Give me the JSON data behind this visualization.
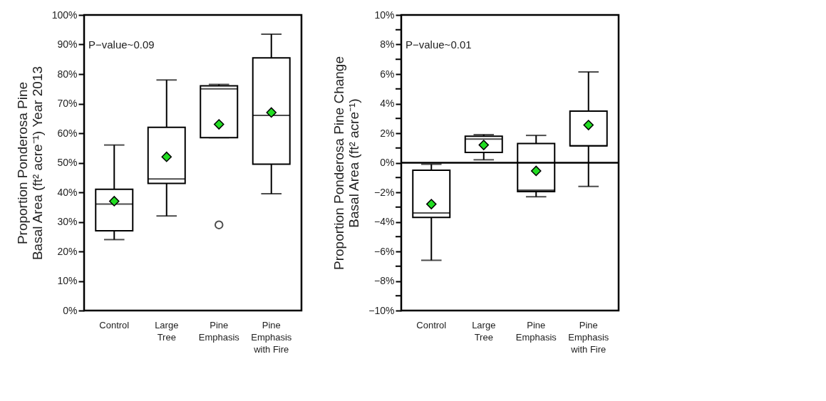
{
  "chart_data": [
    {
      "type": "box",
      "ylabel": "Proportion Ponderosa Pine\nBasal Area (ft² acre⁻¹) Year 2013",
      "categories": [
        "Control",
        "Large\nTree",
        "Pine\nEmphasis",
        "Pine\nEmphasis\nwith Fire"
      ],
      "boxes": [
        {
          "low": 24,
          "q1": 27,
          "median": 36,
          "q3": 41,
          "high": 56,
          "mean": 37
        },
        {
          "low": 32,
          "q1": 43,
          "median": 44.5,
          "q3": 62,
          "high": 78,
          "mean": 52
        },
        {
          "low": 58.5,
          "q1": 58.5,
          "median": 75,
          "q3": 76,
          "high": 76.5,
          "mean": 63,
          "outliers": [
            29
          ]
        },
        {
          "low": 39.5,
          "q1": 49.5,
          "median": 66,
          "q3": 85.5,
          "high": 93.5,
          "mean": 67
        }
      ],
      "ylim": [
        0,
        100
      ],
      "yticks": [
        {
          "value": 0,
          "label": "0%"
        },
        {
          "value": 10,
          "label": "10%"
        },
        {
          "value": 20,
          "label": "20%"
        },
        {
          "value": 30,
          "label": "30%"
        },
        {
          "value": 40,
          "label": "40%"
        },
        {
          "value": 50,
          "label": "50%"
        },
        {
          "value": 60,
          "label": "60%"
        },
        {
          "value": 70,
          "label": "70%"
        },
        {
          "value": 80,
          "label": "80%"
        },
        {
          "value": 90,
          "label": "90%"
        },
        {
          "value": 100,
          "label": "100%"
        }
      ],
      "annotations": [
        "P−value~0.09"
      ],
      "grid": false,
      "legend": false
    },
    {
      "type": "box",
      "ylabel": "Proportion Ponderosa Pine Change\nBasal Area (ft² acre⁻¹)",
      "categories": [
        "Control",
        "Large\nTree",
        "Pine\nEmphasis",
        "Pine\nEmphasis\nwith Fire"
      ],
      "boxes": [
        {
          "low": -6.6,
          "q1": -3.7,
          "median": -3.4,
          "q3": -0.5,
          "high": -0.1,
          "mean": -2.8
        },
        {
          "low": 0.2,
          "q1": 0.7,
          "median": 1.6,
          "q3": 1.8,
          "high": 1.9,
          "mean": 1.2
        },
        {
          "low": -2.3,
          "q1": -1.95,
          "median": -1.85,
          "q3": 1.3,
          "high": 1.85,
          "mean": -0.55
        },
        {
          "low": -1.6,
          "q1": 1.15,
          "median": 1.15,
          "q3": 3.5,
          "high": 6.15,
          "mean": 2.55
        }
      ],
      "ylim": [
        -10,
        10
      ],
      "yticks": [
        {
          "value": -10,
          "label": "−10%"
        },
        {
          "value": -9,
          "label": null
        },
        {
          "value": -8,
          "label": "−8%"
        },
        {
          "value": -7,
          "label": null
        },
        {
          "value": -6,
          "label": "−6%"
        },
        {
          "value": -5,
          "label": null
        },
        {
          "value": -4,
          "label": "−4%"
        },
        {
          "value": -3,
          "label": null
        },
        {
          "value": -2,
          "label": "−2%"
        },
        {
          "value": -1,
          "label": null
        },
        {
          "value": 0,
          "label": "0%"
        },
        {
          "value": 1,
          "label": null
        },
        {
          "value": 2,
          "label": "2%"
        },
        {
          "value": 3,
          "label": null
        },
        {
          "value": 4,
          "label": "4%"
        },
        {
          "value": 5,
          "label": null
        },
        {
          "value": 6,
          "label": "6%"
        },
        {
          "value": 7,
          "label": null
        },
        {
          "value": 8,
          "label": "8%"
        },
        {
          "value": 9,
          "label": null
        },
        {
          "value": 10,
          "label": "10%"
        }
      ],
      "ref_lines": [
        {
          "axis": "y",
          "value": 0,
          "color": "#000000"
        }
      ],
      "annotations": [
        "P−value~0.01"
      ],
      "grid": false,
      "legend": false
    }
  ]
}
